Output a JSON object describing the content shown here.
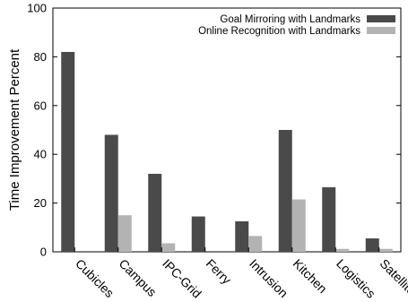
{
  "chart_data": {
    "type": "bar",
    "title": "",
    "xlabel": "",
    "ylabel": "Time Improvement Percent",
    "ylim": [
      0,
      100
    ],
    "yticks": [
      0,
      20,
      40,
      60,
      80,
      100
    ],
    "grid": false,
    "legend_position": "top-right",
    "categories": [
      "Cubicles",
      "Campus",
      "IPC-Grid",
      "Ferry",
      "Intrusion",
      "Kitchen",
      "Logistics",
      "Satellite"
    ],
    "series": [
      {
        "name": "Goal Mirroring with Landmarks",
        "color": "#4a4a4a",
        "values": [
          82,
          48,
          32,
          14.5,
          12.5,
          50,
          26.5,
          5.5
        ]
      },
      {
        "name": "Online Recognition with Landmarks",
        "color": "#b3b3b3",
        "values": [
          0,
          15,
          3.5,
          0,
          6.5,
          21.5,
          1.2,
          1.2
        ]
      }
    ]
  }
}
